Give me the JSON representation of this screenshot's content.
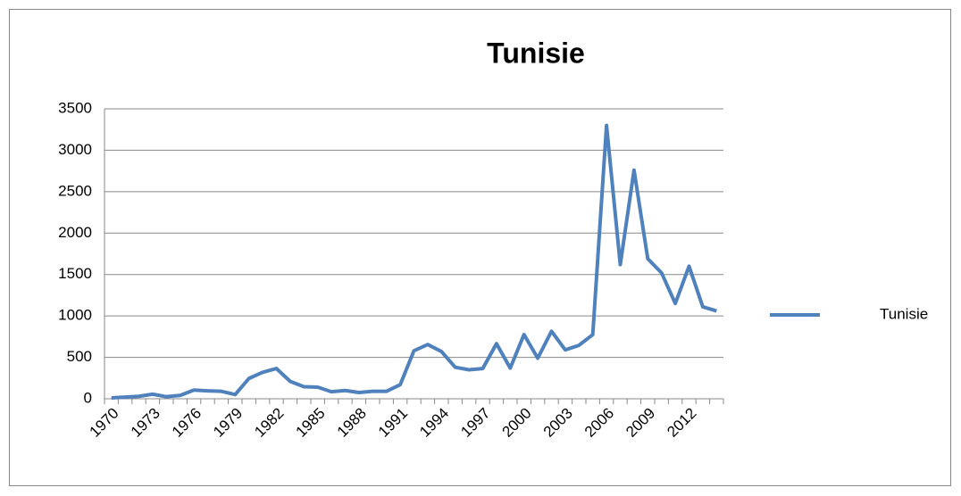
{
  "chart_data": {
    "type": "line",
    "title": "Tunisie",
    "categories": [
      "1970",
      null,
      null,
      "1973",
      null,
      null,
      "1976",
      null,
      null,
      "1979",
      null,
      null,
      "1982",
      null,
      null,
      "1985",
      null,
      null,
      "1988",
      null,
      null,
      "1991",
      null,
      null,
      "1994",
      null,
      null,
      "1997",
      null,
      null,
      "2000",
      null,
      null,
      "2003",
      null,
      null,
      "2006",
      null,
      null,
      "2009",
      null,
      null,
      "2012",
      null,
      null
    ],
    "series": [
      {
        "name": "Tunisie",
        "color": "#4f81bd",
        "values": [
          10,
          20,
          30,
          55,
          25,
          40,
          105,
          95,
          90,
          50,
          245,
          320,
          365,
          210,
          145,
          140,
          85,
          100,
          75,
          90,
          90,
          170,
          580,
          655,
          570,
          380,
          350,
          365,
          665,
          370,
          775,
          490,
          815,
          590,
          645,
          775,
          3300,
          1620,
          2760,
          1690,
          1520,
          1150,
          1600,
          1110,
          1060
        ]
      }
    ],
    "ylim": [
      0,
      3500
    ],
    "yticks": [
      0,
      500,
      1000,
      1500,
      2000,
      2500,
      3000,
      3500
    ],
    "grid": true,
    "legend": "right"
  }
}
